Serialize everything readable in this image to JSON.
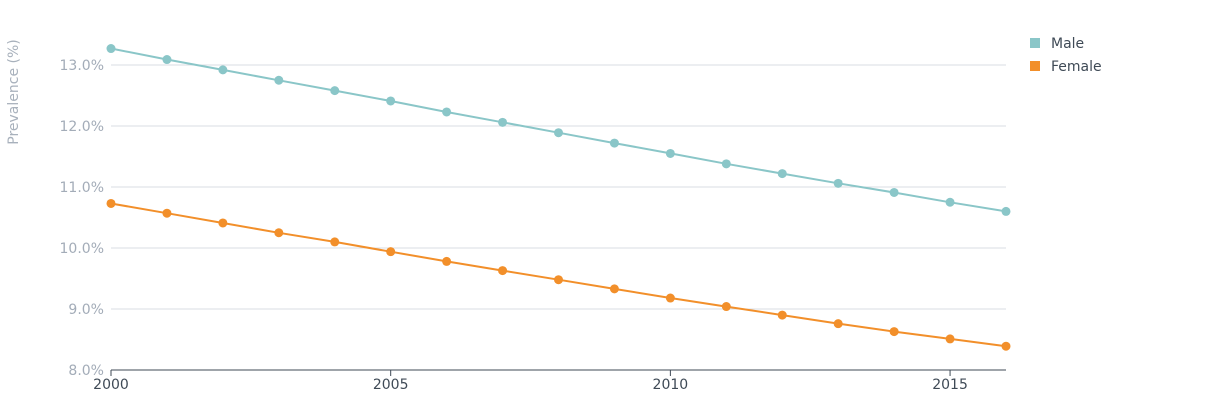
{
  "chart_data": {
    "type": "line",
    "ylabel": "Prevalence (%)",
    "xlim": [
      2000,
      2016
    ],
    "ylim": [
      8.0,
      13.0
    ],
    "yticks": [
      8.0,
      9.0,
      10.0,
      11.0,
      12.0,
      13.0
    ],
    "ytick_labels": [
      "8.0%",
      "9.0%",
      "10.0%",
      "11.0%",
      "12.0%",
      "13.0%"
    ],
    "xticks": [
      2000,
      2005,
      2010,
      2015
    ],
    "xtick_labels": [
      "2000",
      "2005",
      "2010",
      "2015"
    ],
    "grid": true,
    "legend_position": "top-right",
    "x": [
      2000,
      2001,
      2002,
      2003,
      2004,
      2005,
      2006,
      2007,
      2008,
      2009,
      2010,
      2011,
      2012,
      2013,
      2014,
      2015,
      2016
    ],
    "series": [
      {
        "name": "Male",
        "color": "#8ac6c8",
        "values": [
          13.27,
          13.09,
          12.92,
          12.75,
          12.58,
          12.41,
          12.23,
          12.06,
          11.89,
          11.72,
          11.55,
          11.38,
          11.22,
          11.06,
          10.91,
          10.75,
          10.6
        ]
      },
      {
        "name": "Female",
        "color": "#f28f2a",
        "values": [
          10.73,
          10.57,
          10.41,
          10.25,
          10.1,
          9.94,
          9.78,
          9.63,
          9.48,
          9.33,
          9.18,
          9.04,
          8.9,
          8.76,
          8.63,
          8.51,
          8.39
        ]
      }
    ]
  }
}
